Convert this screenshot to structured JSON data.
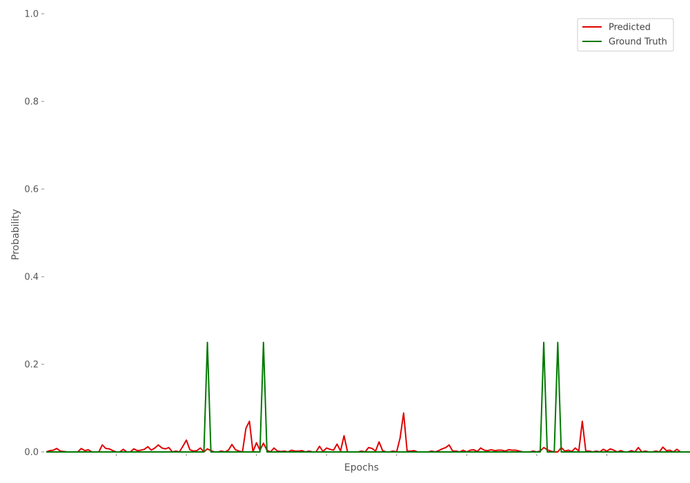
{
  "chart_data": {
    "type": "line",
    "title": "",
    "xlabel": "Epochs",
    "ylabel": "Probability",
    "xlim": [
      0,
      180
    ],
    "ylim": [
      0,
      1.0
    ],
    "yticks": [
      {
        "value": 0.0,
        "label": "0.0"
      },
      {
        "value": 0.2,
        "label": "0.2"
      },
      {
        "value": 0.4,
        "label": "0.4"
      },
      {
        "value": 0.6,
        "label": "0.6"
      },
      {
        "value": 0.8,
        "label": "0.8"
      },
      {
        "value": 1.0,
        "label": "1.0"
      }
    ],
    "grid": false,
    "legend": "top-right",
    "series": [
      {
        "name": "Predicted",
        "color": "#e00000",
        "values": [
          0.0,
          0.003,
          0.004,
          0.008,
          0.002,
          0.001,
          0.0,
          0.0,
          0.0,
          0.0,
          0.008,
          0.003,
          0.005,
          0.0,
          0.0,
          0.0,
          0.016,
          0.008,
          0.007,
          0.003,
          0.0,
          0.0,
          0.006,
          0.0,
          0.0,
          0.007,
          0.003,
          0.004,
          0.006,
          0.012,
          0.004,
          0.009,
          0.016,
          0.009,
          0.007,
          0.01,
          0.0,
          0.002,
          0.0,
          0.013,
          0.027,
          0.005,
          0.002,
          0.003,
          0.009,
          0.0,
          0.007,
          0.003,
          0.0,
          0.0,
          0.002,
          0.0,
          0.004,
          0.017,
          0.005,
          0.002,
          0.0,
          0.054,
          0.07,
          0.0,
          0.021,
          0.004,
          0.02,
          0.004,
          0.0,
          0.009,
          0.002,
          0.001,
          0.002,
          0.0,
          0.004,
          0.002,
          0.002,
          0.003,
          0.0,
          0.002,
          0.0,
          0.0,
          0.013,
          0.001,
          0.009,
          0.006,
          0.004,
          0.018,
          0.002,
          0.037,
          0.0,
          0.0,
          0.0,
          0.0,
          0.002,
          0.0,
          0.01,
          0.008,
          0.002,
          0.023,
          0.003,
          0.0,
          0.0,
          0.002,
          0.0,
          0.032,
          0.089,
          0.002,
          0.002,
          0.003,
          0.0,
          0.0,
          0.0,
          0.0,
          0.002,
          0.0,
          0.003,
          0.007,
          0.01,
          0.016,
          0.002,
          0.002,
          0.0,
          0.004,
          0.0,
          0.004,
          0.005,
          0.001,
          0.009,
          0.004,
          0.003,
          0.005,
          0.003,
          0.004,
          0.004,
          0.002,
          0.005,
          0.004,
          0.004,
          0.002,
          0.0,
          0.0,
          0.0,
          0.002,
          0.0,
          0.002,
          0.01,
          0.005,
          0.002,
          0.0,
          0.0,
          0.01,
          0.002,
          0.004,
          0.001,
          0.009,
          0.002,
          0.07,
          0.002,
          0.002,
          0.0,
          0.002,
          0.0,
          0.006,
          0.002,
          0.007,
          0.004,
          0.0,
          0.003,
          0.0,
          0.0,
          0.003,
          0.0,
          0.01,
          0.0,
          0.002,
          0.0,
          0.0,
          0.002,
          0.0,
          0.011,
          0.003,
          0.004,
          0.0,
          0.006,
          0.0
        ]
      },
      {
        "name": "Ground Truth",
        "color": "#007800",
        "values": [
          0,
          0,
          0,
          0,
          0,
          0,
          0,
          0,
          0,
          0,
          0,
          0,
          0,
          0,
          0,
          0,
          0,
          0,
          0,
          0,
          0,
          0,
          0,
          0,
          0,
          0,
          0,
          0,
          0,
          0,
          0,
          0,
          0,
          0,
          0,
          0,
          0,
          0,
          0,
          0,
          0,
          0,
          0,
          0,
          0,
          0,
          0.25,
          0,
          0,
          0,
          0,
          0,
          0,
          0,
          0,
          0,
          0,
          0,
          0,
          0,
          0,
          0,
          0.25,
          0,
          0,
          0,
          0,
          0,
          0,
          0,
          0,
          0,
          0,
          0,
          0,
          0,
          0,
          0,
          0,
          0,
          0,
          0,
          0,
          0,
          0,
          0,
          0,
          0,
          0,
          0,
          0,
          0,
          0,
          0,
          0,
          0,
          0,
          0,
          0,
          0,
          0,
          0,
          0,
          0,
          0,
          0,
          0,
          0,
          0,
          0,
          0,
          0,
          0,
          0,
          0,
          0,
          0,
          0,
          0,
          0,
          0,
          0,
          0,
          0,
          0,
          0,
          0,
          0,
          0,
          0,
          0,
          0,
          0,
          0,
          0,
          0,
          0,
          0,
          0,
          0,
          0,
          0,
          0.25,
          0,
          0,
          0,
          0.25,
          0,
          0,
          0,
          0,
          0,
          0,
          0,
          0,
          0,
          0,
          0,
          0,
          0,
          0,
          0,
          0,
          0,
          0,
          0,
          0,
          0,
          0,
          0,
          0,
          0,
          0,
          0,
          0,
          0,
          0,
          0,
          0,
          0,
          0,
          0,
          0,
          0,
          0,
          0,
          0,
          0,
          0,
          0,
          0,
          0,
          0,
          0,
          0,
          0,
          0,
          0,
          0,
          0,
          0
        ]
      }
    ]
  }
}
